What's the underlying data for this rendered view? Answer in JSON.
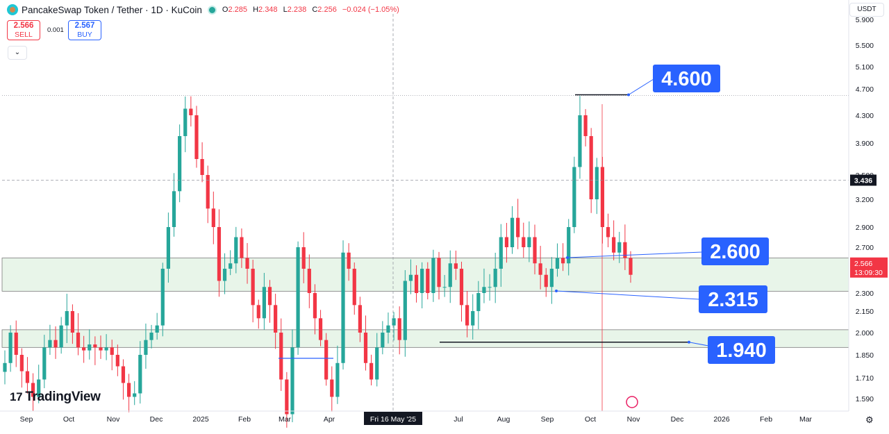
{
  "header": {
    "symbol": "PancakeSwap Token / Tether · 1D · KuCoin",
    "o_key": "O",
    "o_val": "2.285",
    "h_key": "H",
    "h_val": "2.348",
    "l_key": "L",
    "l_val": "2.238",
    "c_key": "C",
    "c_val": "2.256",
    "change": "−0.024 (−1.05%)"
  },
  "trade": {
    "sell_price": "2.566",
    "sell_label": "SELL",
    "spread": "0.001",
    "buy_price": "2.567",
    "buy_label": "BUY",
    "collapse_icon": "⌄"
  },
  "currency": "USDT",
  "brand": {
    "mark": "17",
    "name": "TradingView"
  },
  "colors": {
    "up": "#26a69a",
    "down": "#f23645",
    "zone": "#e8f5e9",
    "label_bg": "#2962ff"
  },
  "chart_data": {
    "type": "candlestick",
    "title": "PancakeSwap Token / Tether · 1D · KuCoin",
    "ylim": [
      1.55,
      5.9
    ],
    "y_ticks": [
      "5.900",
      "5.500",
      "5.100",
      "4.700",
      "4.300",
      "3.900",
      "3.500",
      "3.200",
      "2.900",
      "2.700",
      "2.500",
      "2.300",
      "2.150",
      "2.000",
      "1.850",
      "1.710",
      "1.590"
    ],
    "x_ticks": [
      "Sep",
      "Oct",
      "Nov",
      "Dec",
      "2025",
      "Feb",
      "Mar",
      "Apr",
      "Fri 16 May '25",
      "Jul",
      "Aug",
      "Sep",
      "Oct",
      "Nov",
      "Dec",
      "2026",
      "Feb",
      "Mar"
    ],
    "crosshair_date": "Fri 16 May '25",
    "crosshair_price": "3.436",
    "last_price": "2.566",
    "countdown": "13:09:30",
    "levels": [
      "4.600",
      "2.600",
      "2.315",
      "1.940"
    ],
    "zones": [
      [
        2.315,
        2.6
      ],
      [
        1.9,
        2.02
      ]
    ],
    "price_path": [
      1.8,
      2.0,
      1.85,
      1.75,
      1.68,
      1.6,
      1.7,
      1.9,
      1.95,
      1.9,
      2.05,
      2.15,
      2.0,
      1.9,
      1.88,
      1.92,
      1.9,
      1.88,
      1.9,
      1.85,
      1.78,
      1.68,
      1.6,
      1.62,
      1.85,
      1.95,
      2.0,
      2.05,
      2.5,
      2.9,
      3.3,
      4.0,
      4.4,
      4.3,
      3.7,
      3.5,
      3.1,
      2.9,
      2.4,
      2.5,
      2.55,
      2.8,
      2.6,
      2.5,
      2.2,
      2.1,
      2.35,
      2.2,
      2.0,
      1.7,
      1.5,
      1.9,
      2.7,
      2.5,
      2.3,
      2.1,
      1.95,
      1.7,
      1.6,
      1.8,
      2.65,
      2.5,
      2.2,
      2.0,
      1.8,
      1.7,
      1.9,
      2.0,
      2.05,
      2.1,
      1.95,
      2.4,
      2.45,
      2.3,
      2.5,
      2.3,
      2.6,
      2.35,
      2.35,
      2.55,
      2.5,
      2.2,
      2.05,
      2.15,
      2.3,
      2.35,
      2.35,
      2.5,
      2.8,
      2.7,
      3.0,
      2.8,
      2.7,
      2.8,
      2.55,
      2.45,
      2.35,
      2.5,
      2.6,
      2.55,
      2.9,
      3.6,
      4.3,
      4.0,
      3.2,
      3.6,
      2.9,
      2.8,
      2.65,
      2.75,
      2.6,
      2.45
    ]
  }
}
